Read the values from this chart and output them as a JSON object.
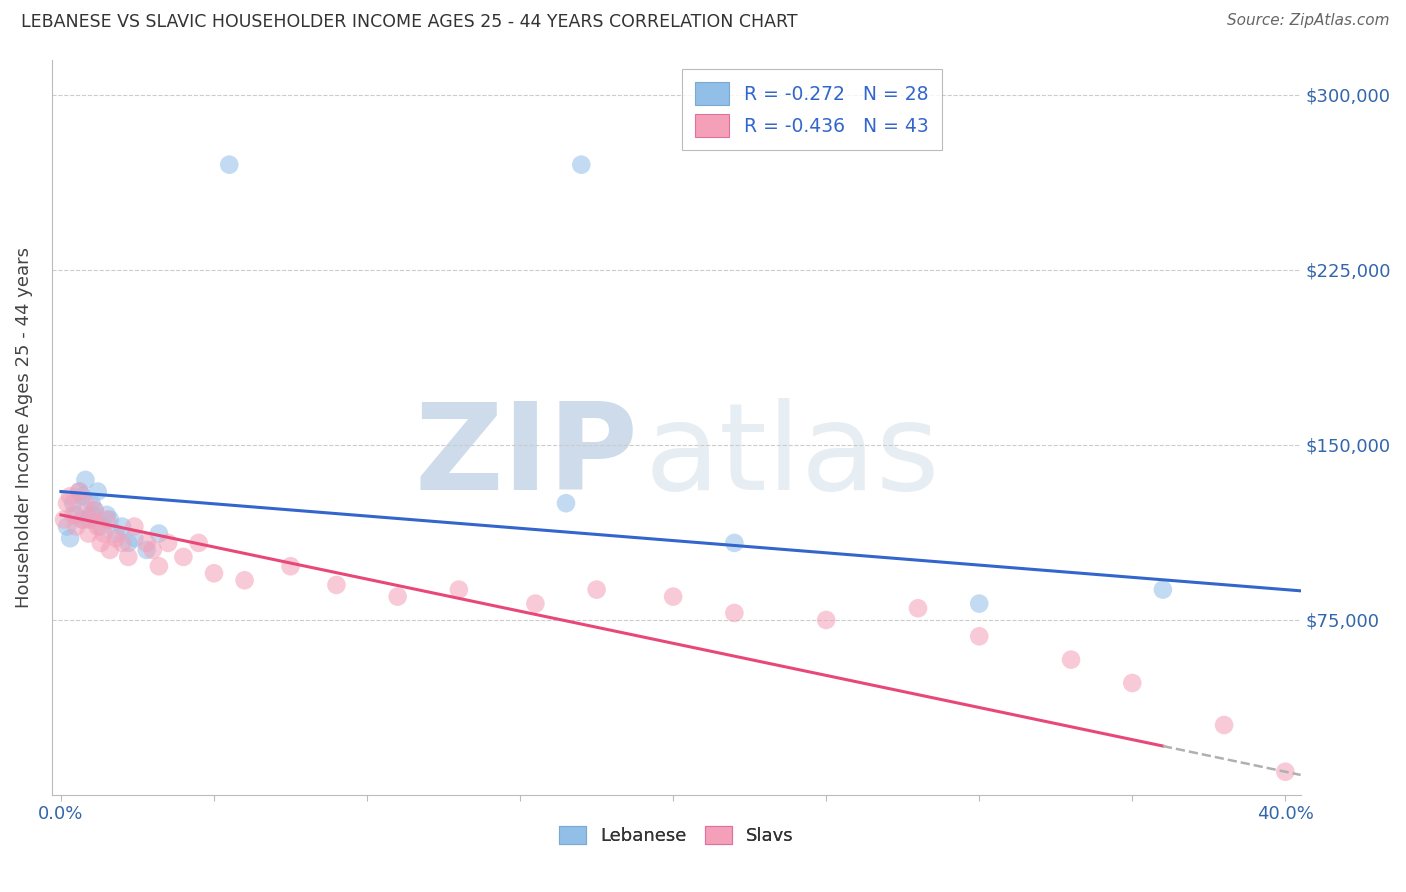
{
  "title": "LEBANESE VS SLAVIC HOUSEHOLDER INCOME AGES 25 - 44 YEARS CORRELATION CHART",
  "source": "Source: ZipAtlas.com",
  "xlim": [
    0.0,
    0.405
  ],
  "ylim": [
    0,
    315000
  ],
  "ylabel_ticks": [
    0,
    75000,
    150000,
    225000,
    300000
  ],
  "ylabel_labels": [
    "",
    "$75,000",
    "$150,000",
    "$225,000",
    "$300,000"
  ],
  "leb_color": "#92bfe8",
  "slavs_color": "#f4a0b8",
  "leb_line_color": "#3366cc",
  "slavs_line_color": "#e84878",
  "dash_line_color": "#b0b0b0",
  "background_color": "#ffffff",
  "grid_color": "#cccccc",
  "watermark_zip": "ZIP",
  "watermark_atlas": "atlas",
  "watermark_color": "#d5e4f0",
  "legend_leb_label": "R = -0.272   N = 28",
  "legend_slavs_label": "R = -0.436   N = 43",
  "legend_text_color": "#3366cc",
  "dot_size": 180,
  "dot_alpha": 0.55,
  "leb_x": [
    0.002,
    0.004,
    0.005,
    0.006,
    0.007,
    0.008,
    0.009,
    0.01,
    0.011,
    0.012,
    0.013,
    0.015,
    0.016,
    0.018,
    0.02,
    0.022,
    0.024,
    0.028,
    0.032,
    0.055,
    0.165,
    0.22,
    0.3,
    0.36,
    0.003,
    0.007,
    0.01,
    0.17
  ],
  "leb_y": [
    115000,
    125000,
    120000,
    130000,
    128000,
    135000,
    118000,
    125000,
    122000,
    130000,
    115000,
    120000,
    118000,
    112000,
    115000,
    108000,
    110000,
    105000,
    112000,
    270000,
    125000,
    108000,
    82000,
    88000,
    110000,
    118000,
    120000,
    270000
  ],
  "slavs_x": [
    0.001,
    0.002,
    0.003,
    0.004,
    0.005,
    0.006,
    0.007,
    0.008,
    0.009,
    0.01,
    0.011,
    0.012,
    0.013,
    0.014,
    0.015,
    0.016,
    0.018,
    0.02,
    0.022,
    0.024,
    0.028,
    0.03,
    0.032,
    0.035,
    0.04,
    0.045,
    0.05,
    0.06,
    0.075,
    0.09,
    0.11,
    0.13,
    0.155,
    0.175,
    0.2,
    0.22,
    0.25,
    0.28,
    0.3,
    0.33,
    0.35,
    0.38,
    0.4
  ],
  "slavs_y": [
    118000,
    125000,
    128000,
    120000,
    115000,
    130000,
    118000,
    125000,
    112000,
    118000,
    122000,
    115000,
    108000,
    112000,
    118000,
    105000,
    110000,
    108000,
    102000,
    115000,
    108000,
    105000,
    98000,
    108000,
    102000,
    108000,
    95000,
    92000,
    98000,
    90000,
    85000,
    88000,
    82000,
    88000,
    85000,
    78000,
    75000,
    80000,
    68000,
    58000,
    48000,
    30000,
    10000
  ]
}
